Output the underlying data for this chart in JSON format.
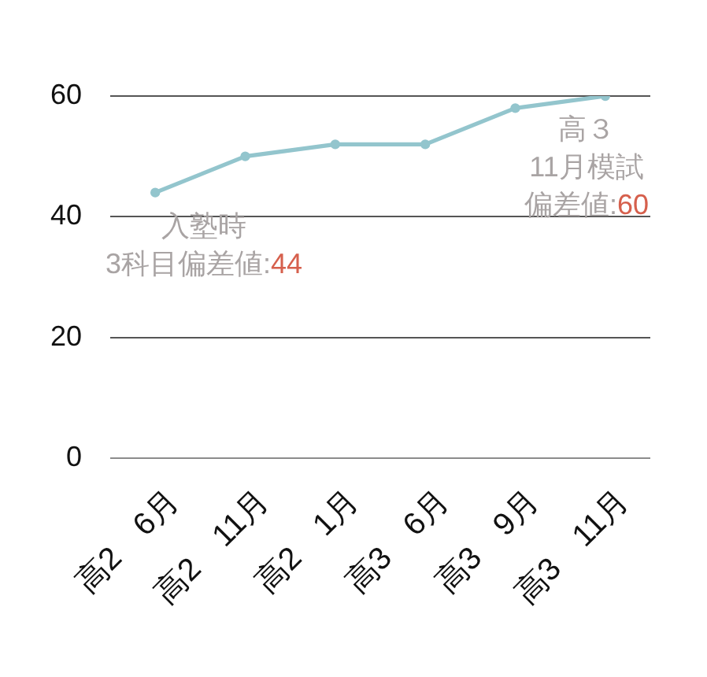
{
  "chart_data": {
    "type": "line",
    "categories": [
      "高2　6月",
      "高2　11月",
      "高2　1月",
      "高3　6月",
      "高3　9月",
      "高3　11月"
    ],
    "series": [
      {
        "color": "#93c5cd",
        "values": [
          44,
          50,
          52,
          52,
          58,
          60
        ]
      }
    ],
    "ylim": [
      0,
      60
    ],
    "yticks": [
      0,
      20,
      40,
      60
    ],
    "grid": "y",
    "marker": "circle",
    "line_style": "solid",
    "annotations": [
      "入塾時3科目偏差値:44",
      "高３11月模試偏差値:60"
    ]
  }
}
